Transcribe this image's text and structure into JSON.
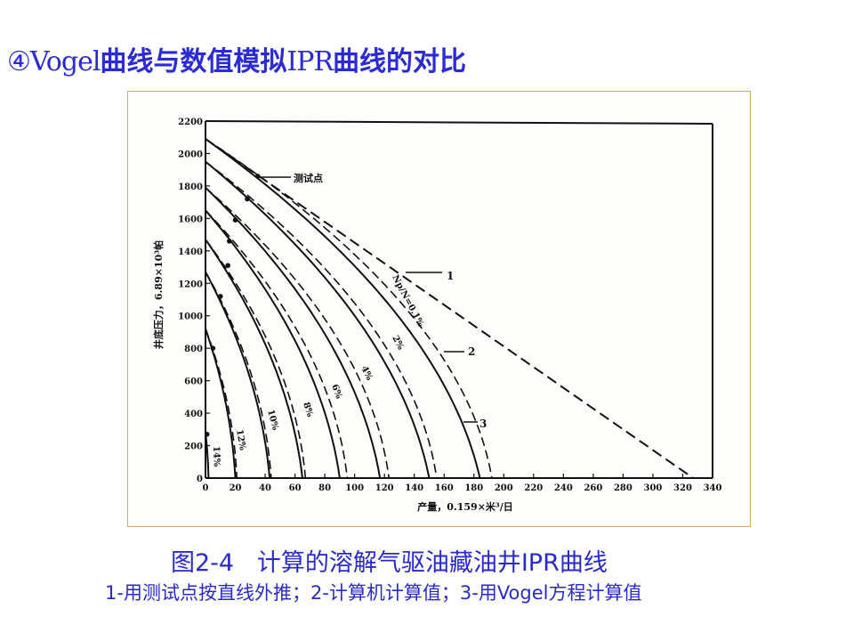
{
  "slide": {
    "title_prefix": "④Vogel",
    "title_part1": "曲线与数值模拟",
    "title_mid": "IPR",
    "title_part2": "曲线的对比"
  },
  "caption": {
    "title": "图2-4   计算的溶解气驱油藏油井IPR曲线",
    "note": "1-用测试点按直线外推；2-计算机计算值；3-用Vogel方程计算值"
  },
  "chart_data": {
    "type": "line",
    "xlabel": "产量，0.159×米³/日",
    "ylabel": "井底压力，6.89×10³帕",
    "xlim": [
      0,
      340
    ],
    "ylim": [
      0,
      2200
    ],
    "x_ticks": [
      "0",
      "20",
      "40",
      "60",
      "80",
      "100",
      "120",
      "140",
      "160",
      "180",
      "200",
      "220",
      "240",
      "260",
      "280",
      "300",
      "320",
      "340"
    ],
    "y_ticks": [
      "0",
      "200",
      "400",
      "600",
      "800",
      "1000",
      "1200",
      "1400",
      "1600",
      "1800",
      "2000",
      "2200"
    ],
    "grid": false,
    "annotations": {
      "test_point": "测试点",
      "line1": "1",
      "line2": "2",
      "line3": "3"
    },
    "straight_line_1": {
      "name": "1",
      "x": [
        0,
        327
      ],
      "y": [
        2090,
        0
      ]
    },
    "series": [
      {
        "label": "Np/N=0.1%",
        "pr": 2090,
        "qmax_computed": 184,
        "qmax_vogel": 192
      },
      {
        "label": "2%",
        "pr": 1950,
        "qmax_computed": 150,
        "qmax_vogel": 155
      },
      {
        "label": "4%",
        "pr": 1790,
        "qmax_computed": 117,
        "qmax_vogel": 123
      },
      {
        "label": "6%",
        "pr": 1650,
        "qmax_computed": 90,
        "qmax_vogel": 95
      },
      {
        "label": "8%",
        "pr": 1470,
        "qmax_computed": 65,
        "qmax_vogel": 67
      },
      {
        "label": "10%",
        "pr": 1270,
        "qmax_computed": 43,
        "qmax_vogel": 44
      },
      {
        "label": "12%",
        "pr": 920,
        "qmax_computed": 20,
        "qmax_vogel": 21
      },
      {
        "label": "14%",
        "pr": 280,
        "qmax_computed": 2,
        "qmax_vogel": 2
      }
    ],
    "test_points": [
      {
        "x": 35,
        "y": 1860
      },
      {
        "x": 28,
        "y": 1720
      },
      {
        "x": 20,
        "y": 1590
      },
      {
        "x": 16,
        "y": 1460
      },
      {
        "x": 15,
        "y": 1310
      },
      {
        "x": 10,
        "y": 1120
      },
      {
        "x": 5,
        "y": 800
      },
      {
        "x": 1,
        "y": 270
      }
    ]
  }
}
